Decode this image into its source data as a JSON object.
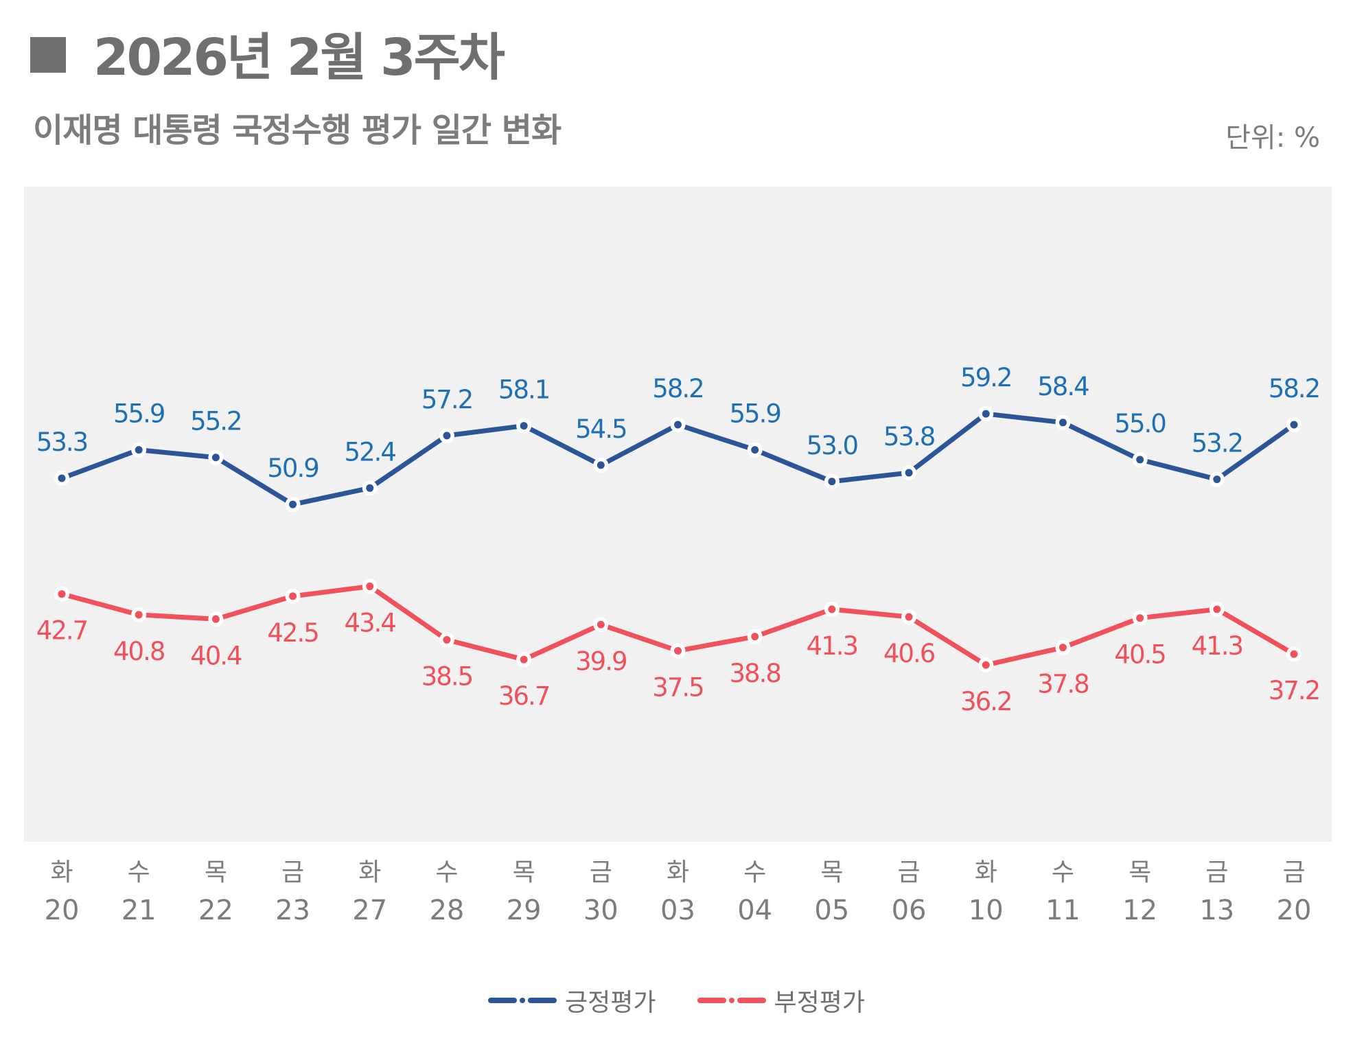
{
  "header": {
    "title": "2026년 2월 3주차",
    "subtitle": "이재명 대통령 국정수행 평가 일간 변화",
    "unit": "단위: %"
  },
  "colors": {
    "positive": "#2b5597",
    "positive_label": "#1f6fb5",
    "negative": "#f0515a",
    "plot_bg": "#f1f1f1",
    "axis_text": "#7c7c7c"
  },
  "chart_data": {
    "type": "line",
    "x_days": [
      "화",
      "수",
      "목",
      "금",
      "화",
      "수",
      "목",
      "금",
      "화",
      "수",
      "목",
      "금",
      "화",
      "수",
      "목",
      "금",
      "금"
    ],
    "x_dates": [
      "20",
      "21",
      "22",
      "23",
      "27",
      "28",
      "29",
      "30",
      "03",
      "04",
      "05",
      "06",
      "10",
      "11",
      "12",
      "13",
      "20"
    ],
    "ylim": [
      20,
      80
    ],
    "series": [
      {
        "name": "긍정평가",
        "label_pos": "above",
        "values": [
          53.3,
          55.9,
          55.2,
          50.9,
          52.4,
          57.2,
          58.1,
          54.5,
          58.2,
          55.9,
          53.0,
          53.8,
          59.2,
          58.4,
          55.0,
          53.2,
          58.2
        ],
        "labels": [
          "53.3",
          "55.9",
          "55.2",
          "50.9",
          "52.4",
          "57.2",
          "58.1",
          "54.5",
          "58.2",
          "55.9",
          "53.0",
          "53.8",
          "59.2",
          "58.4",
          "55.0",
          "53.2",
          "58.2"
        ]
      },
      {
        "name": "부정평가",
        "label_pos": "below",
        "values": [
          42.7,
          40.8,
          40.4,
          42.5,
          43.4,
          38.5,
          36.7,
          39.9,
          37.5,
          38.8,
          41.3,
          40.6,
          36.2,
          37.8,
          40.5,
          41.3,
          37.2
        ],
        "labels": [
          "42.7",
          "40.8",
          "40.4",
          "42.5",
          "43.4",
          "38.5",
          "36.7",
          "39.9",
          "37.5",
          "38.8",
          "41.3",
          "40.6",
          "36.2",
          "37.8",
          "40.5",
          "41.3",
          "37.2"
        ]
      }
    ],
    "legend": [
      "긍정평가",
      "부정평가"
    ]
  }
}
